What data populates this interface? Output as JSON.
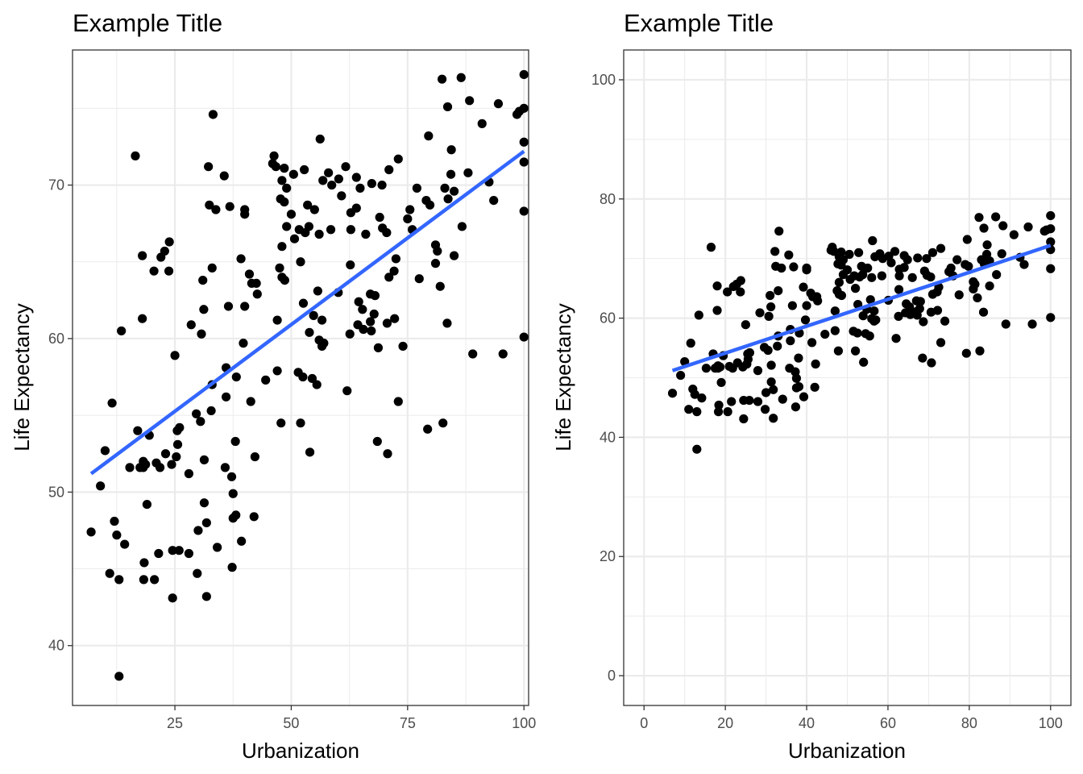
{
  "chart_data": [
    {
      "type": "scatter",
      "title": "Example Title",
      "xlabel": "Urbanization",
      "ylabel": "Life Expectancy",
      "xlim": [
        3,
        101
      ],
      "ylim": [
        36.1,
        78.8
      ],
      "xticks": [
        25,
        50,
        75,
        100
      ],
      "yticks": [
        40,
        50,
        60,
        70
      ],
      "xminor": [
        12.5,
        37.5,
        62.5,
        87.5
      ],
      "yminor": [
        45,
        55,
        65,
        75
      ],
      "grid": true,
      "fit_line": {
        "x": [
          7,
          100
        ],
        "y": [
          51.2,
          72.2
        ],
        "color": "#3366ff"
      },
      "point_color": "#000000",
      "points": [
        [
          7,
          47.4
        ],
        [
          9,
          50.4
        ],
        [
          10,
          52.7
        ],
        [
          11,
          44.7
        ],
        [
          11.5,
          55.8
        ],
        [
          12,
          48.1
        ],
        [
          12.5,
          47.2
        ],
        [
          13,
          38
        ],
        [
          13,
          44.3
        ],
        [
          13.5,
          60.5
        ],
        [
          14.2,
          46.6
        ],
        [
          15.3,
          51.6
        ],
        [
          16.5,
          71.9
        ],
        [
          17,
          54
        ],
        [
          17.5,
          51.6
        ],
        [
          18,
          65.4
        ],
        [
          18,
          61.3
        ],
        [
          18.2,
          52
        ],
        [
          18.2,
          51.6
        ],
        [
          18.3,
          44.3
        ],
        [
          18.4,
          45.4
        ],
        [
          18.7,
          51.8
        ],
        [
          19,
          49.2
        ],
        [
          19.5,
          53.7
        ],
        [
          20.5,
          64.4
        ],
        [
          20.6,
          44.3
        ],
        [
          21,
          51.9
        ],
        [
          21.5,
          46
        ],
        [
          21.8,
          51.6
        ],
        [
          22,
          65.3
        ],
        [
          22.8,
          65.7
        ],
        [
          23,
          52.5
        ],
        [
          23.7,
          64.4
        ],
        [
          23.8,
          66.3
        ],
        [
          24.3,
          51.8
        ],
        [
          24.5,
          43.1
        ],
        [
          24.5,
          46.2
        ],
        [
          25,
          58.9
        ],
        [
          25.3,
          52.3
        ],
        [
          25.5,
          54
        ],
        [
          25.6,
          53.1
        ],
        [
          25.9,
          46.2
        ],
        [
          26,
          54.2
        ],
        [
          28,
          51.2
        ],
        [
          28,
          46
        ],
        [
          28.5,
          60.9
        ],
        [
          29.6,
          55.1
        ],
        [
          29.8,
          44.7
        ],
        [
          30,
          47.5
        ],
        [
          30.5,
          54.6
        ],
        [
          30.7,
          60.3
        ],
        [
          31,
          63.8
        ],
        [
          31.2,
          61.9
        ],
        [
          31.3,
          52.1
        ],
        [
          31.3,
          49.3
        ],
        [
          31.8,
          48
        ],
        [
          31.8,
          43.2
        ],
        [
          32.2,
          71.2
        ],
        [
          32.4,
          68.7
        ],
        [
          32.8,
          55.3
        ],
        [
          33,
          64.6
        ],
        [
          33,
          57
        ],
        [
          33.2,
          74.6
        ],
        [
          33.8,
          68.4
        ],
        [
          34.1,
          46.4
        ],
        [
          35.6,
          70.6
        ],
        [
          35.8,
          51.6
        ],
        [
          36,
          56.2
        ],
        [
          36,
          58.1
        ],
        [
          36.5,
          62.1
        ],
        [
          36.8,
          68.6
        ],
        [
          37.2,
          51
        ],
        [
          37.3,
          45.1
        ],
        [
          37.5,
          49.9
        ],
        [
          37.5,
          48.3
        ],
        [
          38,
          53.3
        ],
        [
          38.1,
          48.5
        ],
        [
          38.2,
          57.5
        ],
        [
          39.2,
          65.2
        ],
        [
          39.3,
          46.8
        ],
        [
          39.7,
          59.7
        ],
        [
          40,
          68.1
        ],
        [
          40,
          68.4
        ],
        [
          40,
          62.1
        ],
        [
          41,
          64.2
        ],
        [
          41.3,
          55.9
        ],
        [
          41.5,
          63.6
        ],
        [
          42,
          48.4
        ],
        [
          42.2,
          52.3
        ],
        [
          42.5,
          63.6
        ],
        [
          42.7,
          62.9
        ],
        [
          44.5,
          57.3
        ],
        [
          46,
          71.4
        ],
        [
          46.3,
          71.9
        ],
        [
          46.7,
          71.2
        ],
        [
          47,
          57.9
        ],
        [
          47,
          61.2
        ],
        [
          47.5,
          64.6
        ],
        [
          47.7,
          69.1
        ],
        [
          47.8,
          54.5
        ],
        [
          48,
          70.3
        ],
        [
          48,
          66
        ],
        [
          48,
          64
        ],
        [
          48.5,
          71.1
        ],
        [
          48.5,
          68.9
        ],
        [
          48.6,
          63.8
        ],
        [
          49,
          69.8
        ],
        [
          49,
          67.3
        ],
        [
          50,
          68.1
        ],
        [
          50.5,
          70.7
        ],
        [
          50.7,
          66.5
        ],
        [
          51.5,
          57.8
        ],
        [
          51.7,
          67.1
        ],
        [
          52,
          54.5
        ],
        [
          52,
          65
        ],
        [
          52.5,
          57.5
        ],
        [
          52.6,
          62.3
        ],
        [
          52.8,
          71
        ],
        [
          53,
          66.9
        ],
        [
          53.5,
          68.7
        ],
        [
          53.8,
          67.3
        ],
        [
          53.9,
          60.4
        ],
        [
          54,
          52.6
        ],
        [
          54.5,
          57.4
        ],
        [
          54.8,
          61.5
        ],
        [
          55,
          68.4
        ],
        [
          55.5,
          57
        ],
        [
          55.7,
          63.1
        ],
        [
          56,
          59.9
        ],
        [
          56,
          66.8
        ],
        [
          56.2,
          73
        ],
        [
          56.6,
          61.2
        ],
        [
          56.6,
          59.5
        ],
        [
          56.8,
          70.3
        ],
        [
          57,
          59.7
        ],
        [
          58,
          70.8
        ],
        [
          58.5,
          67.1
        ],
        [
          58.7,
          70
        ],
        [
          60.1,
          63
        ],
        [
          60.2,
          70.4
        ],
        [
          60.8,
          69.3
        ],
        [
          61.7,
          71.2
        ],
        [
          62,
          56.6
        ],
        [
          62.6,
          60.3
        ],
        [
          62.7,
          64.8
        ],
        [
          62.8,
          67.1
        ],
        [
          62.8,
          68.2
        ],
        [
          64,
          70.5
        ],
        [
          64,
          68.5
        ],
        [
          64.3,
          60.9
        ],
        [
          64.5,
          62.4
        ],
        [
          64.8,
          69.8
        ],
        [
          65.3,
          61.9
        ],
        [
          65.5,
          60.6
        ],
        [
          66,
          66.8
        ],
        [
          67,
          62.9
        ],
        [
          67,
          61.1
        ],
        [
          67.2,
          60.5
        ],
        [
          67.3,
          70.1
        ],
        [
          67.8,
          61.6
        ],
        [
          68,
          62.8
        ],
        [
          68.5,
          53.3
        ],
        [
          68.7,
          59.4
        ],
        [
          69,
          67.9
        ],
        [
          69.5,
          70
        ],
        [
          69.6,
          67.2
        ],
        [
          70.5,
          66.9
        ],
        [
          70.6,
          61
        ],
        [
          70.7,
          52.5
        ],
        [
          71,
          64
        ],
        [
          71,
          71
        ],
        [
          72.1,
          64.4
        ],
        [
          72.2,
          61.3
        ],
        [
          72.5,
          65.2
        ],
        [
          73,
          55.9
        ],
        [
          73,
          71.7
        ],
        [
          74,
          59.5
        ],
        [
          75,
          67.8
        ],
        [
          75.5,
          68.4
        ],
        [
          76,
          67.1
        ],
        [
          77,
          69.8
        ],
        [
          77.5,
          63.9
        ],
        [
          79,
          69
        ],
        [
          79.3,
          54.1
        ],
        [
          79.5,
          73.2
        ],
        [
          79.8,
          68.7
        ],
        [
          81,
          66.1
        ],
        [
          81,
          64.9
        ],
        [
          81.4,
          65.7
        ],
        [
          82,
          63.4
        ],
        [
          82.4,
          76.9
        ],
        [
          82.6,
          54.5
        ],
        [
          83,
          69.8
        ],
        [
          83.5,
          61
        ],
        [
          83.6,
          75.1
        ],
        [
          83.7,
          69.1
        ],
        [
          84.3,
          70.7
        ],
        [
          84.4,
          72.3
        ],
        [
          85,
          65.4
        ],
        [
          85,
          69.6
        ],
        [
          86.5,
          77
        ],
        [
          86.7,
          67.3
        ],
        [
          88,
          70.8
        ],
        [
          88.3,
          75.5
        ],
        [
          89,
          59
        ],
        [
          91,
          74
        ],
        [
          92.5,
          70.2
        ],
        [
          93.5,
          69
        ],
        [
          94.5,
          75.3
        ],
        [
          95.5,
          59
        ],
        [
          98.5,
          74.6
        ],
        [
          99,
          74.8
        ],
        [
          100,
          77.2
        ],
        [
          100,
          75
        ],
        [
          100,
          72.8
        ],
        [
          100,
          71.5
        ],
        [
          100,
          68.3
        ],
        [
          100,
          60.1
        ]
      ]
    },
    {
      "type": "scatter",
      "title": "Example Title",
      "xlabel": "Urbanization",
      "ylabel": "Life Expectancy",
      "xlim": [
        -5,
        105
      ],
      "ylim": [
        -5,
        105
      ],
      "xticks": [
        0,
        20,
        40,
        60,
        80,
        100
      ],
      "yticks": [
        0,
        20,
        40,
        60,
        80,
        100
      ],
      "xminor": [
        10,
        30,
        50,
        70,
        90
      ],
      "yminor": [
        10,
        30,
        50,
        70,
        90
      ],
      "grid": true,
      "fit_line": {
        "x": [
          7,
          100
        ],
        "y": [
          51.2,
          72.2
        ],
        "color": "#3366ff"
      },
      "point_color": "#000000"
    }
  ]
}
